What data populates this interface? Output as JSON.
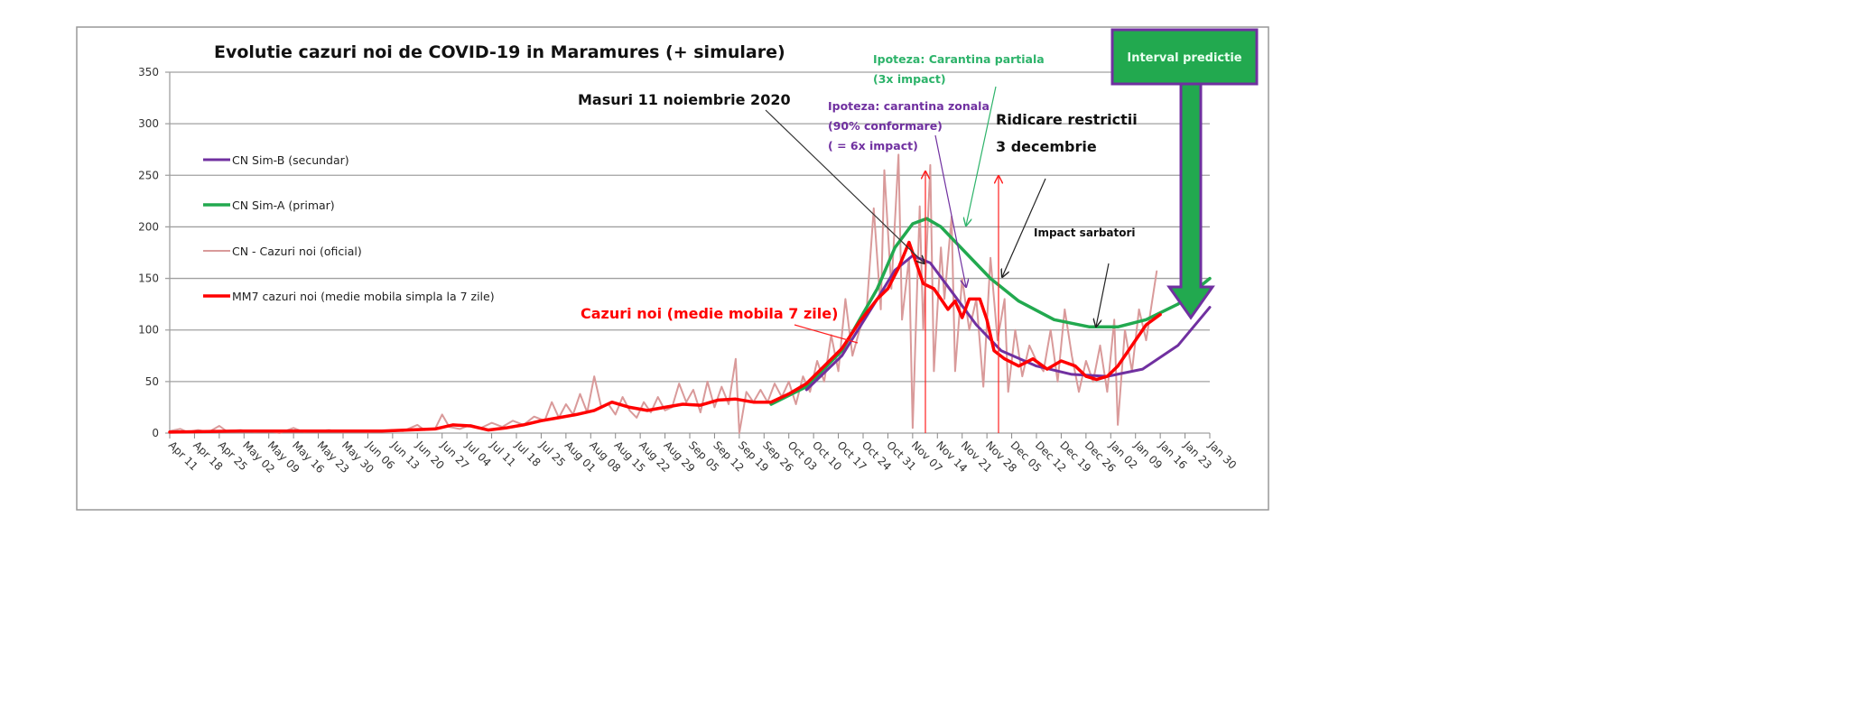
{
  "chart_data": {
    "type": "line",
    "title": "Evolutie cazuri noi de COVID-19 in Maramures (+ simulare)",
    "xlabel": "",
    "ylabel": "",
    "x_unit": "days since Apr 11",
    "xlim": [
      0,
      294
    ],
    "ylim": [
      0,
      350
    ],
    "yticks": [
      0,
      50,
      100,
      150,
      200,
      250,
      300,
      350
    ],
    "xtick_labels": [
      "Apr 11",
      "Apr 18",
      "Apr 25",
      "May 02",
      "May 09",
      "May 16",
      "May 23",
      "May 30",
      "Jun 06",
      "Jun 13",
      "Jun 20",
      "Jun 27",
      "Jul 04",
      "Jul 11",
      "Jul 18",
      "Jul 25",
      "Aug 01",
      "Aug 08",
      "Aug 15",
      "Aug 22",
      "Aug 29",
      "Sep 05",
      "Sep 12",
      "Sep 19",
      "Sep 26",
      "Oct 03",
      "Oct 10",
      "Oct 17",
      "Oct 24",
      "Oct 31",
      "Nov 07",
      "Nov 14",
      "Nov 21",
      "Nov 28",
      "Dec 05",
      "Dec 12",
      "Dec 19",
      "Dec 26",
      "Jan 02",
      "Jan 09",
      "Jan 16",
      "Jan 23",
      "Jan 30"
    ],
    "grid": true,
    "legend_position": "left",
    "series": [
      {
        "name": "CN Sim-B (secundar)",
        "color": "#7030a0",
        "width": 3,
        "points": [
          [
            180,
            42
          ],
          [
            190,
            75
          ],
          [
            200,
            130
          ],
          [
            205,
            158
          ],
          [
            210,
            172
          ],
          [
            215,
            165
          ],
          [
            220,
            142
          ],
          [
            228,
            105
          ],
          [
            235,
            80
          ],
          [
            245,
            65
          ],
          [
            255,
            57
          ],
          [
            265,
            55
          ],
          [
            275,
            62
          ],
          [
            285,
            85
          ],
          [
            294,
            122
          ]
        ]
      },
      {
        "name": "CN Sim-A (primar)",
        "color": "#22a94f",
        "width": 3.5,
        "points": [
          [
            170,
            28
          ],
          [
            180,
            45
          ],
          [
            190,
            80
          ],
          [
            200,
            140
          ],
          [
            205,
            180
          ],
          [
            210,
            203
          ],
          [
            214,
            208
          ],
          [
            218,
            200
          ],
          [
            225,
            175
          ],
          [
            232,
            150
          ],
          [
            240,
            128
          ],
          [
            250,
            110
          ],
          [
            260,
            103
          ],
          [
            268,
            103
          ],
          [
            276,
            110
          ],
          [
            285,
            125
          ],
          [
            294,
            150
          ]
        ]
      },
      {
        "name": "CN - Cazuri noi (oficial)",
        "color": "#d99a9a",
        "width": 2,
        "points": [
          [
            0,
            2
          ],
          [
            3,
            4
          ],
          [
            5,
            1
          ],
          [
            8,
            3
          ],
          [
            11,
            1
          ],
          [
            14,
            7
          ],
          [
            16,
            2
          ],
          [
            20,
            3
          ],
          [
            24,
            1
          ],
          [
            28,
            2
          ],
          [
            31,
            0
          ],
          [
            35,
            5
          ],
          [
            38,
            1
          ],
          [
            42,
            2
          ],
          [
            45,
            3
          ],
          [
            49,
            1
          ],
          [
            52,
            2
          ],
          [
            56,
            1
          ],
          [
            60,
            2
          ],
          [
            63,
            3
          ],
          [
            66,
            2
          ],
          [
            70,
            8
          ],
          [
            72,
            3
          ],
          [
            75,
            4
          ],
          [
            77,
            18
          ],
          [
            79,
            6
          ],
          [
            82,
            4
          ],
          [
            85,
            8
          ],
          [
            88,
            5
          ],
          [
            91,
            10
          ],
          [
            94,
            6
          ],
          [
            97,
            12
          ],
          [
            100,
            8
          ],
          [
            103,
            16
          ],
          [
            106,
            12
          ],
          [
            108,
            30
          ],
          [
            110,
            15
          ],
          [
            112,
            28
          ],
          [
            114,
            18
          ],
          [
            116,
            38
          ],
          [
            118,
            20
          ],
          [
            120,
            55
          ],
          [
            122,
            25
          ],
          [
            124,
            28
          ],
          [
            126,
            18
          ],
          [
            128,
            35
          ],
          [
            130,
            22
          ],
          [
            132,
            15
          ],
          [
            134,
            30
          ],
          [
            136,
            20
          ],
          [
            138,
            35
          ],
          [
            140,
            22
          ],
          [
            142,
            25
          ],
          [
            144,
            48
          ],
          [
            146,
            30
          ],
          [
            148,
            42
          ],
          [
            150,
            20
          ],
          [
            152,
            50
          ],
          [
            154,
            25
          ],
          [
            156,
            45
          ],
          [
            158,
            28
          ],
          [
            160,
            72
          ],
          [
            161,
            0
          ],
          [
            163,
            40
          ],
          [
            165,
            30
          ],
          [
            167,
            42
          ],
          [
            169,
            30
          ],
          [
            171,
            48
          ],
          [
            173,
            35
          ],
          [
            175,
            50
          ],
          [
            177,
            28
          ],
          [
            179,
            55
          ],
          [
            181,
            40
          ],
          [
            183,
            70
          ],
          [
            185,
            50
          ],
          [
            187,
            95
          ],
          [
            189,
            60
          ],
          [
            191,
            130
          ],
          [
            193,
            75
          ],
          [
            195,
            100
          ],
          [
            197,
            120
          ],
          [
            199,
            218
          ],
          [
            201,
            120
          ],
          [
            202,
            255
          ],
          [
            204,
            140
          ],
          [
            206,
            270
          ],
          [
            207,
            110
          ],
          [
            209,
            170
          ],
          [
            210,
            5
          ],
          [
            212,
            220
          ],
          [
            213,
            100
          ],
          [
            215,
            260
          ],
          [
            216,
            60
          ],
          [
            218,
            180
          ],
          [
            219,
            130
          ],
          [
            221,
            210
          ],
          [
            222,
            60
          ],
          [
            224,
            150
          ],
          [
            226,
            100
          ],
          [
            228,
            130
          ],
          [
            230,
            45
          ],
          [
            232,
            170
          ],
          [
            234,
            90
          ],
          [
            236,
            130
          ],
          [
            237,
            40
          ],
          [
            239,
            100
          ],
          [
            241,
            55
          ],
          [
            243,
            85
          ],
          [
            245,
            70
          ],
          [
            247,
            60
          ],
          [
            249,
            100
          ],
          [
            251,
            50
          ],
          [
            253,
            120
          ],
          [
            255,
            75
          ],
          [
            257,
            40
          ],
          [
            259,
            70
          ],
          [
            261,
            50
          ],
          [
            263,
            85
          ],
          [
            265,
            40
          ],
          [
            267,
            110
          ],
          [
            268,
            8
          ],
          [
            270,
            100
          ],
          [
            272,
            60
          ],
          [
            274,
            120
          ],
          [
            276,
            90
          ],
          [
            279,
            157
          ]
        ]
      },
      {
        "name": "MM7 cazuri noi (medie mobila simpla la 7 zile)",
        "color": "#ff0000",
        "width": 3.5,
        "points": [
          [
            0,
            1
          ],
          [
            20,
            2
          ],
          [
            40,
            2
          ],
          [
            60,
            2
          ],
          [
            75,
            4
          ],
          [
            80,
            8
          ],
          [
            85,
            7
          ],
          [
            90,
            3
          ],
          [
            95,
            5
          ],
          [
            100,
            8
          ],
          [
            105,
            12
          ],
          [
            110,
            15
          ],
          [
            115,
            18
          ],
          [
            120,
            22
          ],
          [
            125,
            30
          ],
          [
            130,
            25
          ],
          [
            135,
            22
          ],
          [
            140,
            25
          ],
          [
            145,
            28
          ],
          [
            150,
            27
          ],
          [
            155,
            32
          ],
          [
            160,
            33
          ],
          [
            165,
            30
          ],
          [
            170,
            30
          ],
          [
            175,
            38
          ],
          [
            180,
            48
          ],
          [
            185,
            65
          ],
          [
            190,
            82
          ],
          [
            195,
            108
          ],
          [
            200,
            130
          ],
          [
            203,
            140
          ],
          [
            206,
            160
          ],
          [
            209,
            185
          ],
          [
            211,
            165
          ],
          [
            213,
            145
          ],
          [
            216,
            140
          ],
          [
            218,
            130
          ],
          [
            220,
            120
          ],
          [
            222,
            128
          ],
          [
            224,
            112
          ],
          [
            226,
            130
          ],
          [
            229,
            130
          ],
          [
            231,
            110
          ],
          [
            233,
            80
          ],
          [
            236,
            72
          ],
          [
            240,
            65
          ],
          [
            244,
            72
          ],
          [
            248,
            62
          ],
          [
            252,
            70
          ],
          [
            256,
            65
          ],
          [
            259,
            55
          ],
          [
            262,
            52
          ],
          [
            265,
            55
          ],
          [
            268,
            65
          ],
          [
            272,
            85
          ],
          [
            276,
            105
          ],
          [
            280,
            115
          ]
        ]
      }
    ],
    "annotations": {
      "measures": "Masuri 11 noiembrie 2020",
      "partial_quarantine_1": "Ipoteza: Carantina partiala",
      "partial_quarantine_2": "(3x impact)",
      "zonal_quarantine_1": "Ipoteza: carantina zonala",
      "zonal_quarantine_2": "(90% conformare)",
      "zonal_quarantine_3": "( = 6x impact)",
      "lifting_1": "Ridicare restrictii",
      "lifting_2": "3 decembrie",
      "holidays": "Impact sarbatori",
      "moving_average": "Cazuri noi (medie mobila 7 zile)",
      "prediction_interval": "Interval predictie"
    }
  }
}
